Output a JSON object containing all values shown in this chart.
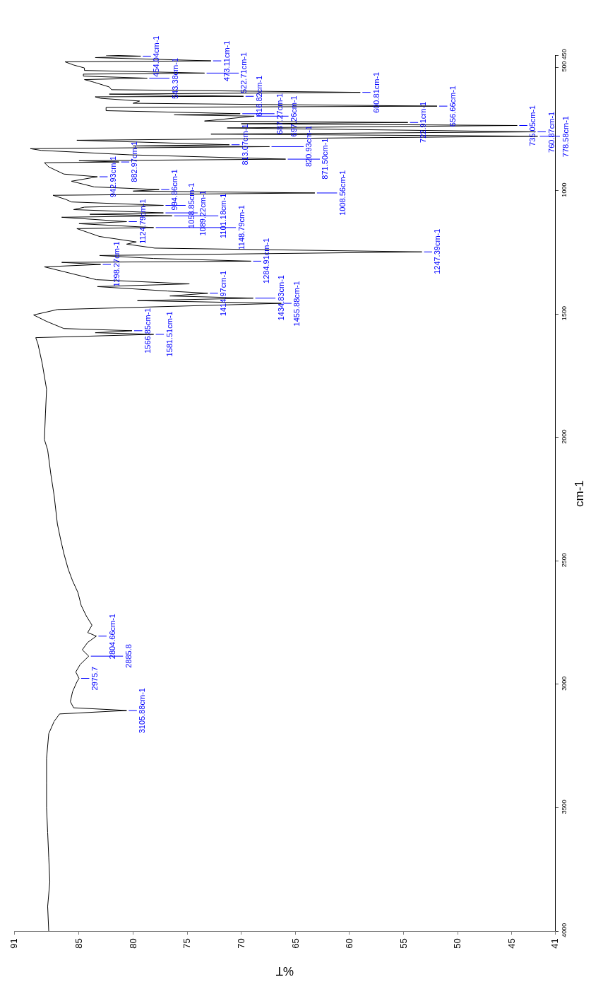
{
  "chart_data": {
    "type": "line",
    "xlabel": "%T",
    "ylabel": "cm-1",
    "ylim": [
      4000,
      450
    ],
    "yticks": [
      4000,
      3500,
      3000,
      2500,
      2000,
      1500,
      1000,
      500,
      450
    ],
    "xlim": [
      91,
      41
    ],
    "xticks": [
      91,
      85,
      80,
      75,
      70,
      65,
      60,
      55,
      50,
      45,
      41
    ],
    "series": [
      {
        "color": "#000000",
        "x": [
          87.8,
          87.9,
          87.7,
          87.8,
          87.9,
          88.0,
          88.0,
          88.0,
          87.8,
          87.3,
          86.8,
          80.6,
          85.5,
          85.8,
          85.6,
          85.2,
          85.0,
          85.3,
          84.9,
          84.1,
          84.7,
          84.2,
          83.4,
          84.2,
          83.8,
          84.3,
          84.8,
          85.1,
          85.6,
          86.0,
          86.4,
          86.7,
          87.0,
          87.3,
          87.6,
          87.9,
          88.2,
          88.1,
          88.0,
          88.4,
          88.8,
          89.0,
          78.1,
          83.5,
          80.1,
          86.4,
          88.0,
          89.2,
          87.0,
          66.3,
          79.6,
          68.9,
          76.6,
          73.1,
          76.8,
          83.3,
          74.8,
          83.4,
          88.2,
          83.0,
          86.6,
          69.1,
          78.1,
          83.1,
          53.3,
          78.0,
          80.6,
          79.7,
          83.1,
          85.2,
          78.1,
          85.0,
          80.6,
          86.6,
          76.4,
          84.0,
          77.2,
          85.5,
          84.5,
          77.2,
          85.7,
          86.2,
          87.4,
          63.2,
          80.0,
          77.6,
          83.6,
          85.7,
          83.3,
          86.4,
          87.8,
          88.2,
          81.3,
          85.0,
          65.9,
          80.3,
          88.5,
          89.5,
          67.4,
          80.0,
          71.1,
          85.2,
          42.6,
          72.8,
          42.8,
          71.3,
          44.5,
          70.0,
          54.6,
          73.4,
          68.8,
          76.2,
          70.1,
          82.5,
          82.5,
          51.9,
          80.0,
          79.4,
          83.0,
          83.5,
          69.8,
          82.2,
          59.0,
          82.0,
          82.2,
          83.6,
          84.5,
          78.7,
          84.6,
          84.6,
          73.4,
          84.5,
          84.5,
          85.5,
          86.3,
          72.8,
          83.5,
          79.3,
          82.5
        ],
        "values": [
          4000,
          3900,
          3800,
          3700,
          3600,
          3500,
          3400,
          3300,
          3200,
          3150,
          3120,
          3105.88,
          3095,
          3070,
          3030,
          2990,
          2975.7,
          2950,
          2920,
          2885.8,
          2860,
          2830,
          2804.66,
          2790,
          2760,
          2725,
          2680,
          2628,
          2580,
          2533,
          2470,
          2413,
          2350,
          2235,
          2150,
          2050,
          2008,
          1900,
          1804,
          1700,
          1620,
          1595,
          1581.51,
          1575,
          1566.85,
          1558,
          1529,
          1503,
          1481,
          1455.88,
          1445,
          1434.83,
          1426,
          1414.97,
          1406,
          1388,
          1377,
          1360,
          1308,
          1298.27,
          1290,
          1284.91,
          1274,
          1262,
          1247.39,
          1232,
          1216,
          1207,
          1185,
          1153,
          1148.79,
          1133,
          1124.79,
          1107,
          1101.18,
          1095,
          1089.22,
          1076,
          1066,
          1058.85,
          1045,
          1035,
          1018,
          1008.56,
          1001,
          994.86,
          984,
          961,
          942.93,
          932,
          903,
          886,
          882.97,
          878,
          871.5,
          854,
          836,
          829,
          820.93,
          818,
          813.07,
          795,
          778.58,
          770,
          760.87,
          745,
          735.05,
          728,
          722.91,
          717,
          697.26,
          692,
          687.27,
          675,
          662,
          656.66,
          645,
          636,
          625,
          619,
          616.82,
          608,
          600.81,
          590,
          579,
          560,
          549,
          543.38,
          535,
          527,
          522.71,
          512,
          502,
          490,
          477,
          473.11,
          460,
          454.04,
          450
        ]
      }
    ],
    "annotations": [
      {
        "text": "454.04cm-1",
        "y": 454.04,
        "x": 79.3
      },
      {
        "text": "473.11cm-1",
        "y": 473.11,
        "x": 72.8
      },
      {
        "text": "522.71cm-1",
        "y": 522.71,
        "x": 73.4
      },
      {
        "text": "543.38cm-1",
        "y": 543.38,
        "x": 78.7
      },
      {
        "text": "600.81cm-1",
        "y": 600.81,
        "x": 59.0
      },
      {
        "text": "616.82cm-1",
        "y": 616.82,
        "x": 69.8
      },
      {
        "text": "656.66cm-1",
        "y": 656.66,
        "x": 51.9
      },
      {
        "text": "687.27cm-1",
        "y": 687.27,
        "x": 70.1
      },
      {
        "text": "697.26cm-1",
        "y": 697.26,
        "x": 68.8
      },
      {
        "text": "722.91cm-1",
        "y": 722.91,
        "x": 54.6
      },
      {
        "text": "735.05cm-1",
        "y": 735.05,
        "x": 44.5
      },
      {
        "text": "760.87cm-1",
        "y": 760.87,
        "x": 42.8
      },
      {
        "text": "778.58cm-1",
        "y": 778.58,
        "x": 42.6
      },
      {
        "text": "813.07cm-1",
        "y": 813.07,
        "x": 71.1
      },
      {
        "text": "820.93cm-1",
        "y": 820.93,
        "x": 67.4
      },
      {
        "text": "871.50cm-1",
        "y": 871.5,
        "x": 65.9
      },
      {
        "text": "882.97cm-1",
        "y": 882.97,
        "x": 81.3
      },
      {
        "text": "942.93cm-1",
        "y": 942.93,
        "x": 83.3
      },
      {
        "text": "994.86cm-1",
        "y": 994.86,
        "x": 77.6
      },
      {
        "text": "1008.56cm-1",
        "y": 1008.56,
        "x": 63.2
      },
      {
        "text": "1058.85cm-1",
        "y": 1058.85,
        "x": 77.2
      },
      {
        "text": "1089.22cm-1",
        "y": 1089.22,
        "x": 77.2
      },
      {
        "text": "1101.18cm-1",
        "y": 1101.18,
        "x": 76.4
      },
      {
        "text": "1124.79cm-1",
        "y": 1124.79,
        "x": 80.6
      },
      {
        "text": "1148.79cm-1",
        "y": 1148.79,
        "x": 78.1
      },
      {
        "text": "1247.39cm-1",
        "y": 1247.39,
        "x": 53.3
      },
      {
        "text": "1284.91cm-1",
        "y": 1284.91,
        "x": 69.1
      },
      {
        "text": "1298.27cm-1",
        "y": 1298.27,
        "x": 83.0
      },
      {
        "text": "1414.97cm-1",
        "y": 1414.97,
        "x": 73.1
      },
      {
        "text": "1434.83cm-1",
        "y": 1434.83,
        "x": 68.9
      },
      {
        "text": "1455.88cm-1",
        "y": 1455.88,
        "x": 66.3
      },
      {
        "text": "1566.85cm-1",
        "y": 1566.85,
        "x": 80.1
      },
      {
        "text": "1581.51cm-1",
        "y": 1581.51,
        "x": 78.1
      },
      {
        "text": "2804.66cm-1",
        "y": 2804.66,
        "x": 83.4
      },
      {
        "text": "2885.8",
        "y": 2885.8,
        "x": 84.1
      },
      {
        "text": "2975.7",
        "y": 2975.7,
        "x": 85.0
      },
      {
        "text": "3105.88cm-1",
        "y": 3105.88,
        "x": 80.6
      }
    ]
  }
}
